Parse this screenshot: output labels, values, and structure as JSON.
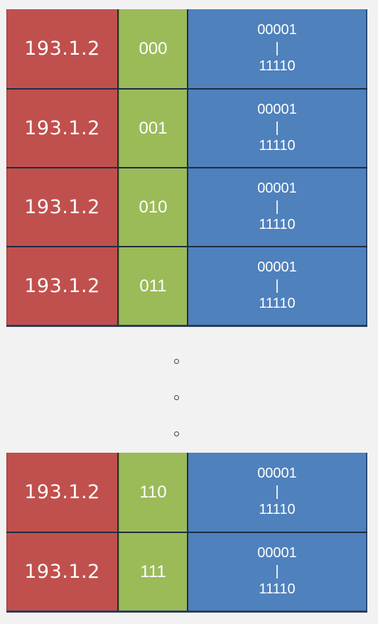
{
  "rows_top": [
    {
      "network": "193.1.2",
      "subnet": "000",
      "host_first": "00001",
      "host_sep": "|",
      "host_last": "11110"
    },
    {
      "network": "193.1.2",
      "subnet": "001",
      "host_first": "00001",
      "host_sep": "|",
      "host_last": "11110"
    },
    {
      "network": "193.1.2",
      "subnet": "010",
      "host_first": "00001",
      "host_sep": "|",
      "host_last": "11110"
    },
    {
      "network": "193.1.2",
      "subnet": "011",
      "host_first": "00001",
      "host_sep": "|",
      "host_last": "11110"
    }
  ],
  "rows_bottom": [
    {
      "network": "193.1.2",
      "subnet": "110",
      "host_first": "00001",
      "host_sep": "|",
      "host_last": "11110"
    },
    {
      "network": "193.1.2",
      "subnet": "111",
      "host_first": "00001",
      "host_sep": "|",
      "host_last": "11110"
    }
  ],
  "colors": {
    "network": "#c0504d",
    "subnet": "#9bbb59",
    "host": "#4f81bd",
    "background": "#f2f2f2"
  }
}
